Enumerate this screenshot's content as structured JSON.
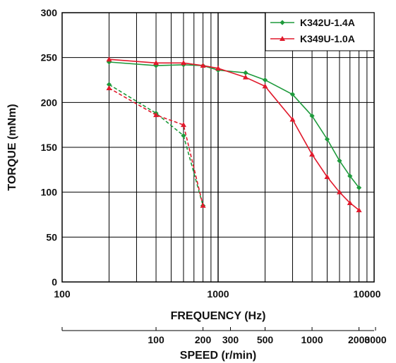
{
  "chart_data": {
    "type": "line",
    "xscale": "log",
    "xlim": [
      100,
      10000
    ],
    "ylim": [
      0,
      300
    ],
    "grid": true,
    "legend_position": "top-right",
    "xlabel": "FREQUENCY (Hz)",
    "ylabel": "TORQUE (mNm)",
    "x_tick_labels": [
      "100",
      "1000",
      "10000"
    ],
    "y_ticks": [
      0,
      50,
      100,
      150,
      200,
      250,
      300
    ],
    "y_tick_labels": [
      "0",
      "50",
      "100",
      "150",
      "200",
      "250",
      "300"
    ],
    "secondary_axis": {
      "label": "SPEED (r/min)",
      "ticks": [
        {
          "value": 100,
          "label": "100",
          "freq": 400
        },
        {
          "value": 200,
          "label": "200",
          "freq": 800
        },
        {
          "value": 300,
          "label": "300",
          "freq": 1200
        },
        {
          "value": 500,
          "label": "500",
          "freq": 2000
        },
        {
          "value": 1000,
          "label": "1000",
          "freq": 4000
        },
        {
          "value": 2000,
          "label": "2000",
          "freq": 8000
        },
        {
          "value": 3000,
          "label": "3000",
          "freq": 12000
        }
      ]
    },
    "series": [
      {
        "name": "K342U-1.4A",
        "color": "#1e9a3c",
        "marker": "diamond",
        "style": "solid",
        "x": [
          200,
          400,
          600,
          800,
          1000,
          1500,
          2000,
          3000,
          4000,
          5000,
          6000,
          7000,
          8000
        ],
        "y": [
          245,
          241,
          242,
          241,
          236,
          233,
          225,
          209,
          185,
          159,
          135,
          118,
          105
        ]
      },
      {
        "name": "K349U-1.0A",
        "color": "#e0192b",
        "marker": "triangle",
        "style": "solid",
        "x": [
          200,
          400,
          600,
          800,
          1000,
          1500,
          2000,
          3000,
          4000,
          5000,
          6000,
          7000,
          8000
        ],
        "y": [
          248,
          244,
          244,
          241,
          238,
          228,
          218,
          181,
          142,
          117,
          100,
          88,
          80
        ]
      },
      {
        "name": "",
        "color": "#1e9a3c",
        "marker": "diamond",
        "style": "dashed",
        "x": [
          200,
          400,
          600,
          800
        ],
        "y": [
          220,
          188,
          163,
          85
        ]
      },
      {
        "name": "",
        "color": "#e0192b",
        "marker": "triangle",
        "style": "dashed",
        "x": [
          200,
          400,
          600,
          800
        ],
        "y": [
          216,
          186,
          175,
          85
        ]
      }
    ]
  }
}
